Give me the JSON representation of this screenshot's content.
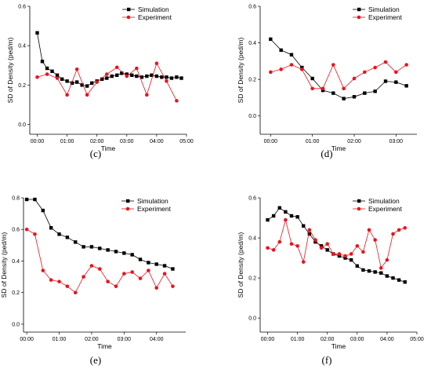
{
  "colors": {
    "simulation": "#000000",
    "experiment": "#e8141e"
  },
  "chart_data": [
    {
      "type": "line",
      "caption": "(c)",
      "xlabel": "Time",
      "ylabel": "SD of Density (ped/m)",
      "xlim": [
        -0.25,
        5.0
      ],
      "ylim": [
        -0.05,
        0.6
      ],
      "xticks": [
        0,
        1,
        2,
        3,
        4,
        5
      ],
      "xtick_labels": [
        "00:00",
        "01:00",
        "02:00",
        "03:00",
        "04:00",
        "05:00"
      ],
      "yticks": [
        0.0,
        0.2,
        0.4,
        0.6
      ],
      "ytick_labels": [
        "0.0",
        "0.2",
        "0.4",
        "0.6"
      ],
      "legend_position": "top-right",
      "series": [
        {
          "name": "Simulation",
          "marker": "square",
          "color": "#000000",
          "x": [
            0.0,
            0.17,
            0.33,
            0.5,
            0.67,
            0.83,
            1.0,
            1.17,
            1.33,
            1.5,
            1.67,
            1.83,
            2.0,
            2.17,
            2.33,
            2.5,
            2.67,
            2.83,
            3.0,
            3.17,
            3.33,
            3.5,
            3.67,
            3.83,
            4.0,
            4.17,
            4.33,
            4.5,
            4.67,
            4.83
          ],
          "y": [
            0.465,
            0.32,
            0.285,
            0.27,
            0.25,
            0.23,
            0.22,
            0.21,
            0.215,
            0.2,
            0.195,
            0.21,
            0.22,
            0.23,
            0.235,
            0.245,
            0.25,
            0.26,
            0.255,
            0.25,
            0.245,
            0.24,
            0.245,
            0.25,
            0.245,
            0.24,
            0.24,
            0.235,
            0.24,
            0.235
          ]
        },
        {
          "name": "Experiment",
          "marker": "circle",
          "color": "#e8141e",
          "x": [
            0.0,
            0.33,
            0.67,
            1.0,
            1.33,
            1.67,
            2.0,
            2.33,
            2.67,
            3.0,
            3.33,
            3.67,
            4.0,
            4.33,
            4.67
          ],
          "y": [
            0.24,
            0.255,
            0.235,
            0.15,
            0.28,
            0.15,
            0.215,
            0.255,
            0.29,
            0.245,
            0.285,
            0.15,
            0.31,
            0.22,
            0.12
          ]
        }
      ]
    },
    {
      "type": "line",
      "caption": "(d)",
      "xlabel": "Time",
      "ylabel": "SD of Density (ped/m)",
      "xlim": [
        -0.25,
        3.5
      ],
      "ylim": [
        -0.1,
        0.6
      ],
      "xticks": [
        0,
        1,
        2,
        3
      ],
      "xtick_labels": [
        "00:00",
        "01:00",
        "02:00",
        "03:00"
      ],
      "yticks": [
        0.0,
        0.2,
        0.4,
        0.6
      ],
      "ytick_labels": [
        "0.0",
        "0.2",
        "0.4",
        "0.6"
      ],
      "legend_position": "top-right",
      "series": [
        {
          "name": "Simulation",
          "marker": "square",
          "color": "#000000",
          "x": [
            0.0,
            0.25,
            0.5,
            0.75,
            1.0,
            1.25,
            1.5,
            1.75,
            2.0,
            2.25,
            2.5,
            2.75,
            3.0,
            3.25
          ],
          "y": [
            0.42,
            0.36,
            0.335,
            0.265,
            0.205,
            0.14,
            0.125,
            0.095,
            0.105,
            0.125,
            0.135,
            0.19,
            0.185,
            0.165
          ]
        },
        {
          "name": "Experiment",
          "marker": "circle",
          "color": "#e8141e",
          "x": [
            0.0,
            0.25,
            0.5,
            0.75,
            1.0,
            1.25,
            1.5,
            1.75,
            2.0,
            2.25,
            2.5,
            2.75,
            3.0,
            3.25
          ],
          "y": [
            0.24,
            0.255,
            0.28,
            0.255,
            0.15,
            0.15,
            0.28,
            0.15,
            0.205,
            0.24,
            0.265,
            0.295,
            0.24,
            0.28
          ]
        }
      ]
    },
    {
      "type": "line",
      "caption": "(e)",
      "xlabel": "Time",
      "ylabel": "SD of Density (ped/m)",
      "xlim": [
        -0.1,
        4.9
      ],
      "ylim": [
        -0.05,
        0.8
      ],
      "xticks": [
        0,
        1,
        2,
        3,
        4
      ],
      "xtick_labels": [
        "00:00",
        "01:00",
        "02:00",
        "03:00",
        "04:00"
      ],
      "yticks": [
        0.0,
        0.2,
        0.4,
        0.6,
        0.8
      ],
      "ytick_labels": [
        "0.0",
        "0.2",
        "0.4",
        "0.6",
        "0.8"
      ],
      "legend_position": "top-right",
      "series": [
        {
          "name": "Simulation",
          "marker": "square",
          "color": "#000000",
          "x": [
            0.0,
            0.25,
            0.5,
            0.75,
            1.0,
            1.25,
            1.5,
            1.75,
            2.0,
            2.25,
            2.5,
            2.75,
            3.0,
            3.25,
            3.5,
            3.75,
            4.0,
            4.25,
            4.5
          ],
          "y": [
            0.79,
            0.79,
            0.72,
            0.61,
            0.57,
            0.55,
            0.52,
            0.49,
            0.49,
            0.48,
            0.47,
            0.46,
            0.45,
            0.44,
            0.41,
            0.39,
            0.38,
            0.37,
            0.35
          ]
        },
        {
          "name": "Experiment",
          "marker": "circle",
          "color": "#e8141e",
          "x": [
            0.0,
            0.25,
            0.5,
            0.75,
            1.0,
            1.25,
            1.5,
            1.75,
            2.0,
            2.25,
            2.5,
            2.75,
            3.0,
            3.25,
            3.5,
            3.75,
            4.0,
            4.25,
            4.5
          ],
          "y": [
            0.6,
            0.57,
            0.34,
            0.28,
            0.27,
            0.24,
            0.2,
            0.3,
            0.37,
            0.35,
            0.27,
            0.24,
            0.32,
            0.33,
            0.29,
            0.34,
            0.23,
            0.32,
            0.24
          ]
        }
      ]
    },
    {
      "type": "line",
      "caption": "(f)",
      "xlabel": "Time",
      "ylabel": "SD of Density (ped/m)",
      "xlim": [
        -0.25,
        5.0
      ],
      "ylim": [
        -0.07,
        0.6
      ],
      "xticks": [
        0,
        1,
        2,
        3,
        4,
        5
      ],
      "xtick_labels": [
        "00:00",
        "01:00",
        "02:00",
        "03:00",
        "04:00",
        "05:00"
      ],
      "yticks": [
        0.0,
        0.2,
        0.4,
        0.6
      ],
      "ytick_labels": [
        "0.0",
        "0.2",
        "0.4",
        "0.6"
      ],
      "legend_position": "top-right",
      "series": [
        {
          "name": "Simulation",
          "marker": "square",
          "color": "#000000",
          "x": [
            0.0,
            0.2,
            0.4,
            0.6,
            0.8,
            1.0,
            1.2,
            1.4,
            1.6,
            1.8,
            2.0,
            2.2,
            2.4,
            2.6,
            2.8,
            3.0,
            3.2,
            3.4,
            3.6,
            3.8,
            4.0,
            4.2,
            4.4,
            4.6
          ],
          "y": [
            0.49,
            0.51,
            0.55,
            0.53,
            0.51,
            0.505,
            0.46,
            0.42,
            0.38,
            0.36,
            0.34,
            0.32,
            0.31,
            0.3,
            0.29,
            0.26,
            0.24,
            0.235,
            0.23,
            0.225,
            0.21,
            0.2,
            0.19,
            0.18
          ]
        },
        {
          "name": "Experiment",
          "marker": "circle",
          "color": "#e8141e",
          "x": [
            0.0,
            0.2,
            0.4,
            0.6,
            0.8,
            1.0,
            1.2,
            1.4,
            1.6,
            1.8,
            2.0,
            2.2,
            2.4,
            2.6,
            2.8,
            3.0,
            3.2,
            3.4,
            3.6,
            3.8,
            4.0,
            4.2,
            4.4,
            4.6
          ],
          "y": [
            0.35,
            0.34,
            0.38,
            0.49,
            0.37,
            0.36,
            0.28,
            0.44,
            0.39,
            0.35,
            0.37,
            0.32,
            0.32,
            0.31,
            0.32,
            0.36,
            0.33,
            0.44,
            0.39,
            0.25,
            0.29,
            0.42,
            0.44,
            0.45
          ]
        }
      ]
    }
  ]
}
